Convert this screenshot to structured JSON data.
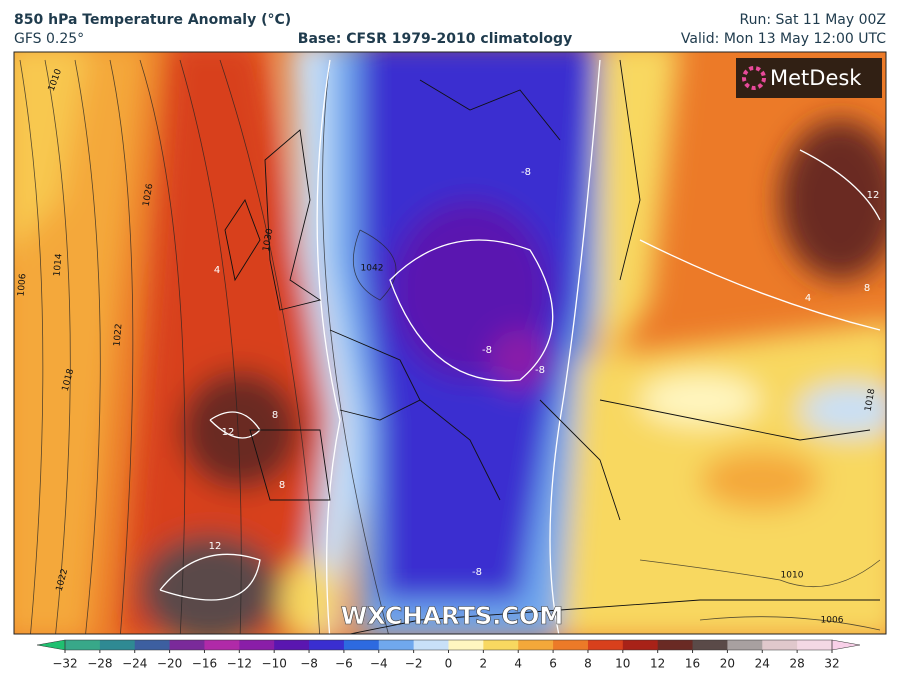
{
  "header": {
    "title": "850 hPa Temperature Anomaly (°C)",
    "model": "GFS 0.25°",
    "base": "Base: CFSR 1979-2010 climatology",
    "run": "Run: Sat 11 May 00Z",
    "valid": "Valid: Mon 13 May 12:00 UTC"
  },
  "logo": "MetDesk",
  "watermark": "WXCHARTS.COM",
  "map_labels": [
    "1010",
    "1026",
    "1014",
    "1006",
    "1022",
    "1018",
    "1030",
    "1042",
    "1022",
    "1010",
    "1006",
    "1018",
    "12",
    "12",
    "8",
    "8",
    "4",
    "-8",
    "-8",
    "-8",
    "-8",
    "4",
    "12",
    "8"
  ],
  "colorbar": {
    "ticks": [
      {
        "value": -32,
        "label": "−32"
      },
      {
        "value": -28,
        "label": "−28"
      },
      {
        "value": -24,
        "label": "−24"
      },
      {
        "value": -20,
        "label": "−20"
      },
      {
        "value": -16,
        "label": "−16"
      },
      {
        "value": -12,
        "label": "−12"
      },
      {
        "value": -10,
        "label": "−10"
      },
      {
        "value": -8,
        "label": "−8"
      },
      {
        "value": -6,
        "label": "−6"
      },
      {
        "value": -4,
        "label": "−4"
      },
      {
        "value": -2,
        "label": "−2"
      },
      0,
      2,
      4,
      6,
      8,
      10,
      12,
      16,
      20,
      24,
      28,
      32
    ],
    "colors": [
      "#38a889",
      "#2f8a93",
      "#3d5fa0",
      "#7a2a9a",
      "#b02aa8",
      "#8a1ea8",
      "#5a16b0",
      "#3a2ed0",
      "#2d6ae0",
      "#70a8ee",
      "#c8e0f8",
      "#fff6c0",
      "#f8d860",
      "#f4a83a",
      "#ec7a28",
      "#d8401c",
      "#a82218",
      "#6a2a24",
      "#5a4a48",
      "#a8a0a0",
      "#e0c8cc",
      "#f4d8e4"
    ],
    "end_colors": [
      "#20c070",
      "#f8d0e8"
    ]
  }
}
